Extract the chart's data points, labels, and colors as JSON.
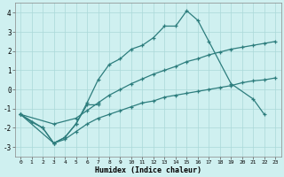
{
  "xlabel": "Humidex (Indice chaleur)",
  "series": [
    {
      "x": [
        0,
        2,
        3,
        4,
        5,
        6,
        7,
        8,
        9,
        10,
        11,
        12,
        13,
        14,
        15,
        16,
        17,
        19,
        21,
        22
      ],
      "y": [
        -1.3,
        -2.0,
        -2.8,
        -2.5,
        -1.8,
        -0.7,
        0.5,
        1.3,
        1.6,
        2.1,
        2.3,
        2.7,
        3.3,
        3.3,
        4.1,
        3.6,
        2.5,
        0.3,
        -0.5,
        -1.3
      ]
    },
    {
      "x": [
        0,
        1,
        2,
        3,
        4,
        5,
        6,
        7
      ],
      "y": [
        -1.3,
        -1.7,
        -2.0,
        -2.8,
        -2.5,
        -1.8,
        -0.8,
        -0.8
      ]
    },
    {
      "x": [
        0,
        3,
        5,
        6,
        7,
        8,
        9,
        10,
        11,
        12,
        13,
        14,
        15,
        16,
        17,
        18,
        19,
        20,
        21,
        22,
        23
      ],
      "y": [
        -1.3,
        -1.8,
        -1.5,
        -1.1,
        -0.7,
        -0.3,
        0.0,
        0.3,
        0.55,
        0.8,
        1.0,
        1.2,
        1.45,
        1.6,
        1.8,
        1.95,
        2.1,
        2.2,
        2.3,
        2.4,
        2.5
      ]
    },
    {
      "x": [
        0,
        3,
        4,
        5,
        6,
        7,
        8,
        9,
        10,
        11,
        12,
        13,
        14,
        15,
        16,
        17,
        18,
        19,
        20,
        21,
        22,
        23
      ],
      "y": [
        -1.3,
        -2.8,
        -2.6,
        -2.2,
        -1.8,
        -1.5,
        -1.3,
        -1.1,
        -0.9,
        -0.7,
        -0.6,
        -0.4,
        -0.3,
        -0.2,
        -0.1,
        0.0,
        0.1,
        0.2,
        0.35,
        0.45,
        0.5,
        0.6
      ]
    }
  ],
  "color": "#2d7d7d",
  "bg_color": "#cff0f0",
  "grid_color": "#aad8d8",
  "ylim": [
    -3.5,
    4.5
  ],
  "xlim": [
    -0.5,
    23.5
  ],
  "yticks": [
    -3,
    -2,
    -1,
    0,
    1,
    2,
    3,
    4
  ],
  "xticks": [
    0,
    1,
    2,
    3,
    4,
    5,
    6,
    7,
    8,
    9,
    10,
    11,
    12,
    13,
    14,
    15,
    16,
    17,
    18,
    19,
    20,
    21,
    22,
    23
  ]
}
